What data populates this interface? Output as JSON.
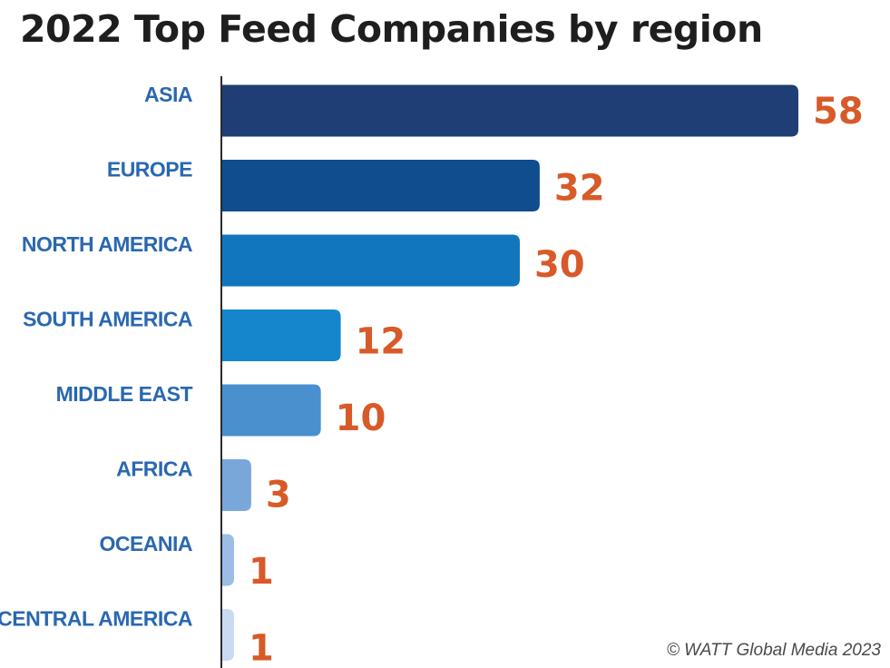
{
  "chart_data": {
    "type": "bar",
    "orientation": "horizontal",
    "title": "2022 Top Feed Companies by region",
    "categories": [
      "ASIA",
      "EUROPE",
      "NORTH AMERICA",
      "SOUTH AMERICA",
      "MIDDLE EAST",
      "AFRICA",
      "OCEANIA",
      "CENTRAL AMERICA"
    ],
    "values": [
      58,
      32,
      30,
      12,
      10,
      3,
      1,
      1
    ],
    "value_labels": [
      "58",
      "32",
      "30",
      "12",
      "10",
      "3",
      "1",
      "1"
    ],
    "bar_colors": [
      "#1f3e75",
      "#0f4d8f",
      "#1276be",
      "#1586cb",
      "#4a90cf",
      "#79a7da",
      "#9bbde6",
      "#c9dbf2"
    ],
    "label_color": "#2a68b0",
    "value_color": "#d85a28",
    "xlim": [
      0,
      58
    ],
    "grid": false,
    "xlabel": "",
    "ylabel": ""
  },
  "footer": {
    "credit": "© WATT Global Media 2023"
  }
}
